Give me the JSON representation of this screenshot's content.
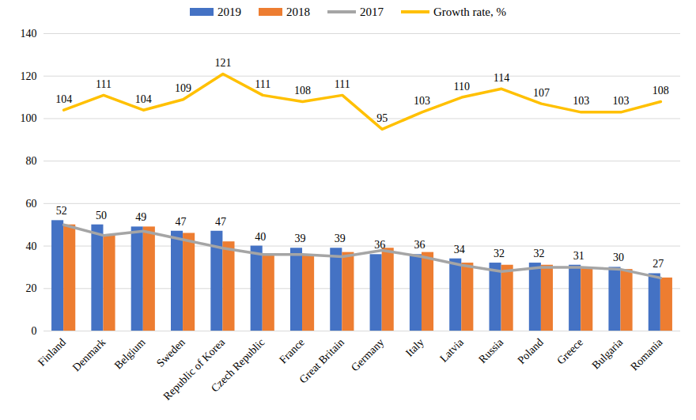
{
  "chart_data": {
    "type": "bar",
    "categories": [
      "Finland",
      "Denmark",
      "Belgium",
      "Sweden",
      "Republic of Korea",
      "Czech Republic",
      "France",
      "Great Britain",
      "Germany",
      "Italy",
      "Latvia",
      "Russia",
      "Poland",
      "Greece",
      "Bulgaria",
      "Romania"
    ],
    "series": [
      {
        "name": "2019",
        "type": "bar",
        "color": "#4472c4",
        "data_labels": true,
        "values": [
          52,
          50,
          49,
          47,
          47,
          40,
          39,
          39,
          36,
          36,
          34,
          32,
          32,
          31,
          30,
          27
        ]
      },
      {
        "name": "2018",
        "type": "bar",
        "color": "#ed7d31",
        "values": [
          50,
          45,
          49,
          46,
          42,
          36,
          36,
          37,
          39,
          37,
          32,
          31,
          31,
          30,
          29,
          25
        ]
      },
      {
        "name": "2017",
        "type": "line",
        "color": "#a5a5a5",
        "values": [
          50,
          45,
          47,
          43,
          39,
          36,
          36,
          35,
          38,
          35,
          31,
          28,
          30,
          30,
          29,
          25
        ]
      },
      {
        "name": "Growth rate, %",
        "type": "line",
        "color": "#ffc000",
        "data_labels": true,
        "values": [
          104,
          111,
          104,
          109,
          121,
          111,
          108,
          111,
          95,
          103,
          110,
          114,
          107,
          103,
          103,
          108
        ]
      }
    ],
    "ylim": [
      0,
      140
    ],
    "yticks": [
      0,
      20,
      40,
      60,
      80,
      100,
      120,
      140
    ],
    "grid": true,
    "legend": "top"
  }
}
